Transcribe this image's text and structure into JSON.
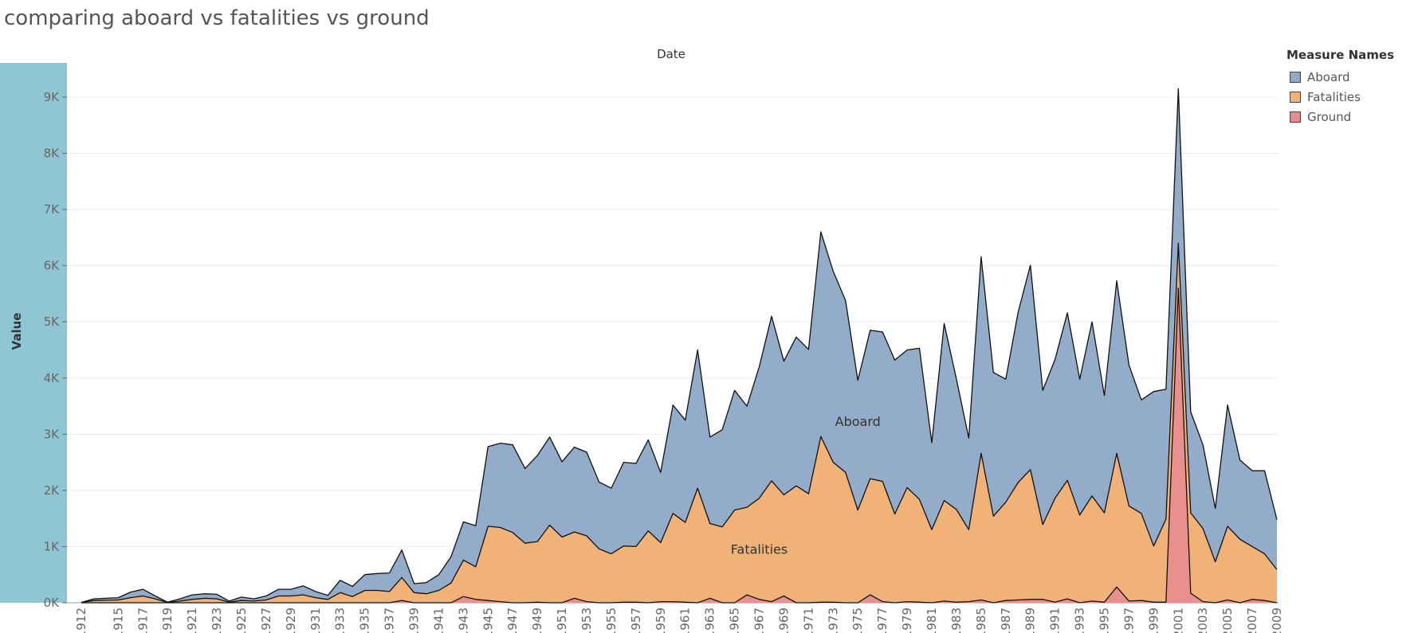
{
  "title": "comparing aboard vs fatalities vs ground",
  "chart_data": {
    "type": "area",
    "stacked": false,
    "title": "comparing aboard vs fatalities vs ground",
    "xlabel": "Date",
    "ylabel": "Value",
    "ylim": [
      0,
      9500
    ],
    "y_ticks": [
      0,
      1000,
      2000,
      3000,
      4000,
      5000,
      6000,
      7000,
      8000,
      9000
    ],
    "y_tick_labels": [
      "0K",
      "1K",
      "2K",
      "3K",
      "4K",
      "5K",
      "6K",
      "7K",
      "8K",
      "9K"
    ],
    "x_tick_labels": [
      "1912",
      "1915",
      "1917",
      "1919",
      "1921",
      "1923",
      "1925",
      "1927",
      "1929",
      "1931",
      "1933",
      "1935",
      "1937",
      "1939",
      "1941",
      "1943",
      "1945",
      "1947",
      "1949",
      "1951",
      "1953",
      "1955",
      "1957",
      "1959",
      "1961",
      "1963",
      "1965",
      "1967",
      "1969",
      "1971",
      "1973",
      "1975",
      "1977",
      "1979",
      "1981",
      "1983",
      "1985",
      "1987",
      "1989",
      "1991",
      "1993",
      "1995",
      "1997",
      "1999",
      "2001",
      "2003",
      "2005",
      "2007",
      "2009"
    ],
    "grid": true,
    "legend_placement": "top-right",
    "legend_title": "Measure Names",
    "x": [
      1912,
      1913,
      1915,
      1916,
      1917,
      1918,
      1919,
      1920,
      1921,
      1922,
      1923,
      1924,
      1925,
      1926,
      1927,
      1928,
      1929,
      1930,
      1931,
      1932,
      1933,
      1934,
      1935,
      1936,
      1937,
      1938,
      1939,
      1940,
      1941,
      1942,
      1943,
      1944,
      1945,
      1946,
      1947,
      1948,
      1949,
      1950,
      1951,
      1952,
      1953,
      1954,
      1955,
      1956,
      1957,
      1958,
      1959,
      1960,
      1961,
      1962,
      1963,
      1964,
      1965,
      1966,
      1967,
      1968,
      1969,
      1970,
      1971,
      1972,
      1973,
      1974,
      1975,
      1976,
      1977,
      1978,
      1979,
      1980,
      1981,
      1982,
      1983,
      1984,
      1985,
      1986,
      1987,
      1988,
      1989,
      1990,
      1991,
      1992,
      1993,
      1994,
      1995,
      1996,
      1997,
      1998,
      1999,
      2000,
      2001,
      2002,
      2003,
      2004,
      2005,
      2006,
      2007,
      2008,
      2009
    ],
    "series": [
      {
        "name": "Aboard",
        "color": "#8fa9c7",
        "label_at": [
          1975,
          3150
        ],
        "values": [
          5,
          70,
          90,
          190,
          240,
          120,
          10,
          70,
          140,
          160,
          150,
          30,
          100,
          70,
          120,
          240,
          240,
          300,
          200,
          130,
          400,
          290,
          500,
          520,
          530,
          940,
          340,
          360,
          500,
          820,
          1440,
          1370,
          2780,
          2840,
          2810,
          2390,
          2620,
          2950,
          2510,
          2770,
          2680,
          2150,
          2040,
          2500,
          2480,
          2900,
          2320,
          3520,
          3250,
          4500,
          2950,
          3080,
          3780,
          3500,
          4200,
          5100,
          4300,
          4730,
          4510,
          6600,
          5900,
          5380,
          3960,
          4850,
          4820,
          4320,
          4500,
          4530,
          2850,
          4970,
          3980,
          2930,
          6160,
          4100,
          3980,
          5170,
          6010,
          3780,
          4330,
          5160,
          3980,
          5000,
          3690,
          5730,
          4230,
          3610,
          3760,
          3800,
          9150,
          3400,
          2810,
          1680,
          3520,
          2540,
          2350,
          2350,
          1480
        ]
      },
      {
        "name": "Fatalities",
        "color": "#f4b274",
        "label_at": [
          1967,
          870
        ],
        "values": [
          5,
          40,
          50,
          90,
          120,
          70,
          5,
          30,
          60,
          80,
          70,
          10,
          40,
          30,
          50,
          120,
          120,
          140,
          90,
          60,
          180,
          110,
          220,
          220,
          200,
          450,
          180,
          160,
          220,
          350,
          760,
          640,
          1360,
          1340,
          1250,
          1060,
          1090,
          1380,
          1170,
          1260,
          1190,
          960,
          870,
          1010,
          1000,
          1280,
          1070,
          1590,
          1430,
          2040,
          1410,
          1350,
          1650,
          1700,
          1860,
          2170,
          1920,
          2080,
          1940,
          2960,
          2500,
          2320,
          1650,
          2210,
          2160,
          1580,
          2050,
          1840,
          1300,
          1820,
          1660,
          1300,
          2660,
          1540,
          1790,
          2140,
          2370,
          1390,
          1860,
          2180,
          1560,
          1900,
          1600,
          2660,
          1720,
          1590,
          1010,
          1490,
          6400,
          1600,
          1320,
          730,
          1360,
          1130,
          1000,
          870,
          590
        ]
      },
      {
        "name": "Ground",
        "color": "#e88d8e",
        "label_at": null,
        "values": [
          0,
          0,
          0,
          0,
          0,
          0,
          0,
          0,
          0,
          0,
          0,
          0,
          0,
          0,
          0,
          0,
          0,
          0,
          0,
          0,
          0,
          0,
          0,
          0,
          0,
          40,
          0,
          0,
          0,
          0,
          110,
          60,
          40,
          20,
          0,
          0,
          10,
          0,
          0,
          80,
          20,
          0,
          0,
          10,
          10,
          0,
          20,
          20,
          10,
          0,
          80,
          0,
          0,
          140,
          60,
          20,
          120,
          0,
          0,
          10,
          10,
          0,
          0,
          140,
          20,
          0,
          20,
          10,
          0,
          30,
          10,
          20,
          50,
          0,
          40,
          50,
          60,
          60,
          10,
          70,
          0,
          30,
          10,
          280,
          30,
          40,
          10,
          10,
          5600,
          170,
          20,
          0,
          50,
          0,
          60,
          40,
          0
        ]
      }
    ]
  }
}
